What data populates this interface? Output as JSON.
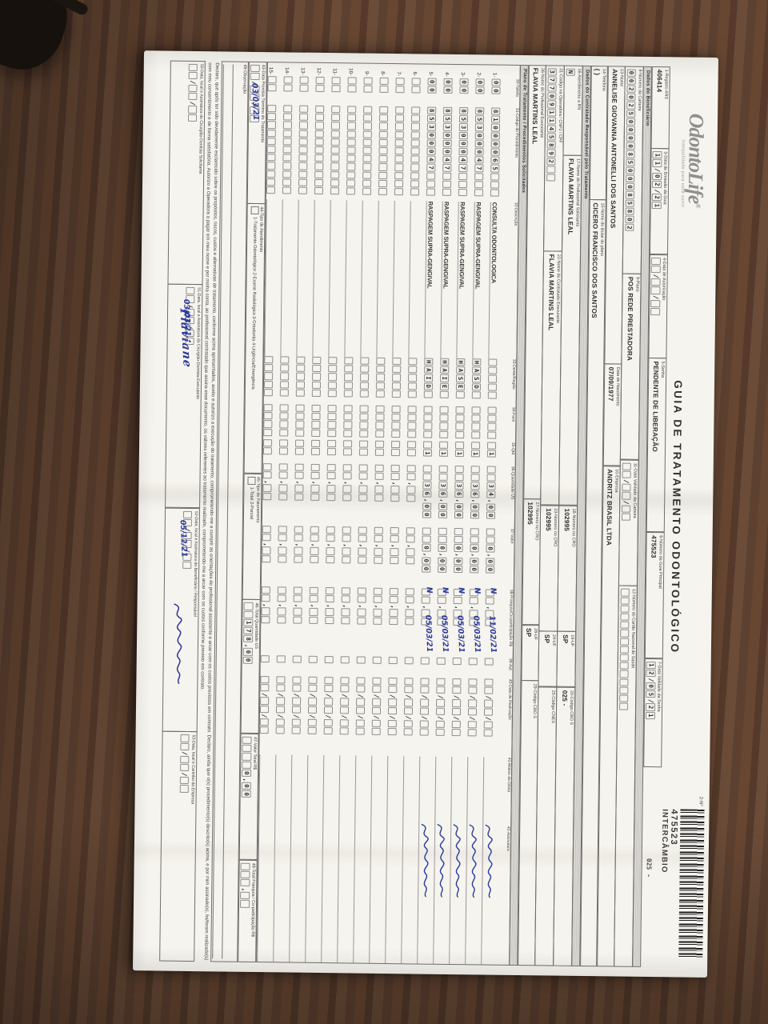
{
  "colors": {
    "wood": "#5e4331",
    "wood_dark": "#3e2c20",
    "paper": "#f6f4ee",
    "ink": "#2e2e2e",
    "pen_blue": "#2b3a9b",
    "logo_gray": "#8f8f8f"
  },
  "header": {
    "logo_name": "OdontoLife",
    "logo_reg": "®",
    "logo_tagline": "tranquilidade para você sorrir",
    "title": "GUIA DE TRATAMENTO ODONTOLÓGICO",
    "numero_label": "2-Nº",
    "numero_value": "475523",
    "numero_tipo": "INTERCÂMBIO",
    "stamp": "025 -"
  },
  "row1": {
    "f1": {
      "label": "1-Registro ANS",
      "value": "406414"
    },
    "f3": {
      "label": "3-Data de Emissão da Guia",
      "comb": "11/02/21"
    },
    "f4": {
      "label": "4-Data de Autorização",
      "comb": "  /  /  "
    },
    "f5": {
      "label": "5-Senha",
      "value": "PENDENTE DE LIBERAÇÃO"
    },
    "f6": {
      "label": "6-Número da Guia Principal",
      "value": "475523"
    },
    "f7": {
      "label": "7-Data Validade da Senha",
      "comb": "12/05/21"
    }
  },
  "beneficiario": {
    "bar": "Dados do Beneficiário",
    "f8": {
      "label": "8-Número da Carteira",
      "comb": "00202500008500085802"
    },
    "f9": {
      "label": "9-Plano",
      "value": "POS REDE PRESTADORA"
    },
    "f11": {
      "label": "11-Data Validade da Carteira",
      "comb": "  /  /  "
    },
    "f12": {
      "label": "12-Número do Cartão Nacional de Saúde",
      "comb": "               "
    },
    "f13": {
      "label": "13-Nome",
      "value": "ANNELISE GIOVANNA ANTONELLI DOS SANTOS"
    },
    "fnasc": {
      "label": "Data de Nascimento",
      "value": "07/09/1977"
    },
    "f10": {
      "label": "10-Empresa",
      "value": "ANDRITZ BRASIL LTDA"
    },
    "f14": {
      "label": "14-Telefone",
      "value": "(        )"
    },
    "f15": {
      "label": "15-Nome do titular do plano",
      "value": "CICERO FRANCISCO DOS SANTOS"
    }
  },
  "contratado": {
    "bar": "Dados do Contratado Responsável pelo Tratamento",
    "f16": {
      "label": "16-Atendimento a RN",
      "comb": "N"
    },
    "f17": {
      "label": "17-Nome do Profissional Solicitante",
      "value": "FLAVIA MARTINS LEAL"
    },
    "f18": {
      "label": "18-Número no CRO",
      "value": "102995"
    },
    "f19": {
      "label": "19-UF",
      "value": "SP"
    },
    "f20": {
      "label": "20-Código CBO S",
      "value": "025 -"
    },
    "f21": {
      "label": "21-Código na Operadora / CNPJ / CPF",
      "comb": "377091145892  "
    },
    "f22": {
      "label": "22-Nome do Contratado Executante",
      "value": "FLAVIA MARTINS LEAL"
    },
    "f23": {
      "label": "23-Número no CRO",
      "value": "102995"
    },
    "f24": {
      "label": "24-UF",
      "value": "SP"
    },
    "f25": {
      "label": "25-Código CNES",
      "value": ""
    },
    "f26": {
      "label": "26-Nome do Profissional Executante",
      "value": "FLAVIA MARTINS LEAL"
    },
    "f27": {
      "label": "27-Número no CRO",
      "value": "102995"
    },
    "f28": {
      "label": "28-UF",
      "value": "SP"
    },
    "f29": {
      "label": "29-Código CBO S",
      "value": ""
    }
  },
  "tratamento": {
    "bar": "Plano de Tratamento / Procedimentos Solicitados",
    "columns": [
      "30-Tabela",
      "31-Código do Procedimento",
      "32-Descrição",
      "33-Dente/Região",
      "34-Face",
      "35-Qtd",
      "36-Quantidade US",
      "37-Valor",
      "38-Franquia/Co-participação R$",
      "39-Aut",
      "40-Data de Realização",
      "41-Motivo da Glosa",
      "42-Assinatura"
    ],
    "rows": [
      {
        "num": "1-",
        "tabela": "00",
        "codigo": "81000065   ",
        "descricao": "CONSULTA ODONTOLOGICA",
        "dente": "     ",
        "face": "    ",
        "qtd": " 1",
        "us": "  34,00",
        "valor": "  0,00",
        "franquia": "  ,  ",
        "aut": "N",
        "data": "11/02/21"
      },
      {
        "num": "2-",
        "tabela": "00",
        "codigo": "85300047   ",
        "descricao": "RASPAGEM SUPRA-GENGIVAL",
        "dente": "HASD ",
        "face": "    ",
        "qtd": " 1",
        "us": "  36,00",
        "valor": "  0,00",
        "franquia": "  ,  ",
        "aut": "N",
        "data": "05/03/21"
      },
      {
        "num": "3-",
        "tabela": "00",
        "codigo": "85300047   ",
        "descricao": "RASPAGEM SUPRA-GENGIVAL",
        "dente": "HASE ",
        "face": "    ",
        "qtd": " 1",
        "us": "  36,00",
        "valor": "  0,00",
        "franquia": "  ,  ",
        "aut": "N",
        "data": "05/03/21"
      },
      {
        "num": "4-",
        "tabela": "00",
        "codigo": "85300047   ",
        "descricao": "RASPAGEM SUPRA-GENGIVAL",
        "dente": "HAIE ",
        "face": "    ",
        "qtd": " 1",
        "us": "  36,00",
        "valor": "  0,00",
        "franquia": "  ,  ",
        "aut": "N",
        "data": "05/03/21"
      },
      {
        "num": "5-",
        "tabela": "00",
        "codigo": "85300047   ",
        "descricao": "RASPAGEM SUPRA-GENGIVAL",
        "dente": "HAID ",
        "face": "    ",
        "qtd": " 1",
        "us": "  36,00",
        "valor": "  0,00",
        "franquia": "  ,  ",
        "aut": "N",
        "data": "05/03/21"
      }
    ],
    "empty_nums": [
      "6-",
      "7-",
      "8-",
      "9-",
      "10-",
      "11-",
      "12-",
      "13-",
      "14-",
      "15-"
    ],
    "blank": {
      "tabela": "  ",
      "codigo": "           ",
      "dente": "     ",
      "face": "    ",
      "qtd": "  ",
      "us": "  ,  ",
      "valor": "  ,  ",
      "franquia": "  ,  ",
      "data": "  /  /  "
    }
  },
  "totals": {
    "f43": {
      "label": "43-Data Prevista Término do Tratamento",
      "comb": "  /  /  ",
      "hand": "03/03/21"
    },
    "f44": {
      "label": "44-Tipo de Atendimento",
      "options": "1-Tratamento Odontológico   2-Exame Radiológico   3-Ortodontia   4-Urgência/Emergência"
    },
    "f45": {
      "label": "45-Tipo de Faturamento",
      "options": "1-Total   2-Parcial"
    },
    "f46": {
      "label": "46-Total Quantidade US",
      "comb": "  178,00"
    },
    "f47": {
      "label": "47-Valor Total R$",
      "comb": "    0,00"
    },
    "f48": {
      "label": "48-Total Franquia / Co-participação R$",
      "comb": "   ,  "
    }
  },
  "observacao": {
    "label": "49-Observação"
  },
  "declaration": "Declaro, que após ter sido devidamente esclarecido sobre os propósitos, riscos, custos e alternativas de tratamento, conforme acima apresentados, aceito e autorizo a execução do tratamento, comprometendo-me a cumprir as orientações do profissional assistente e arcar com os custos previstos em contrato. Declaro, ainda que o(s) procedimento(s) descrito(s) acima, e por mim assinado(s), foi/foram realizado(s) com meu consentimento e de forma satisfatória. Autorizo a Operadora a pagar em meu nome e por minha conta, ao profissional contratado que assina esse documento, os valores referentes ao tratamento realizado, comprometendo-me a arcar com os custos conforme previsto em contrato.",
  "bottom": {
    "b50": {
      "label": "50-Data, local e Assinatura do Cirurgião-Dentista Solicitante",
      "comb": "  /  /  "
    },
    "b51": {
      "label": "51-Data, local e Assinatura do Cirurgião-Dentista Executante",
      "comb": "  /  /  ",
      "hand": "03/03/21",
      "signature": "Flaviane"
    },
    "b52": {
      "label": "52-Data, local e Assinatura do Beneficiário / Responsável",
      "comb": "  /  /  ",
      "hand": "05/12/21"
    },
    "b53": {
      "label": "53-Data, local e Carimbo da Empresa",
      "comb": "  /  /  "
    }
  }
}
